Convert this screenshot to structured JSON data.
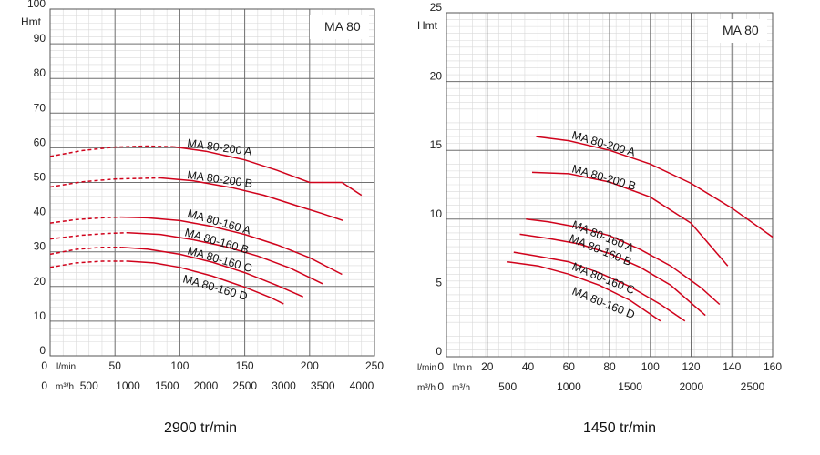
{
  "charts": [
    {
      "id": "left",
      "model_label": "MA 80",
      "y_title": "Hmt",
      "flow_label_primary": "l/min",
      "flow_label_secondary": "m³/h",
      "speed_label": "2900 tr/min"
    },
    {
      "id": "right",
      "model_label": "MA 80",
      "y_title": "Hmt",
      "flow_label_primary": "l/min",
      "flow_label_secondary": "m³/h",
      "speed_label": "1450 tr/min"
    }
  ],
  "chart_data": [
    {
      "type": "line",
      "title": "MA 80",
      "ylabel": "Hmt",
      "xlabel": "l/min",
      "secondary_xlabel": "m³/h",
      "speed": "2900 tr/min",
      "xlim": [
        0,
        250
      ],
      "ylim": [
        0,
        100
      ],
      "x_ticks": [
        0,
        50,
        100,
        150,
        200,
        250
      ],
      "x_tick_labels": [
        "0",
        "50",
        "100",
        "150",
        "200",
        "250"
      ],
      "secondary_x_ticks": [
        0,
        500,
        1000,
        1500,
        2000,
        2500,
        3000,
        3500,
        4000
      ],
      "secondary_x_tick_labels": [
        "0",
        "500",
        "1000",
        "1500",
        "2000",
        "2500",
        "3000",
        "3500",
        "4000"
      ],
      "y_ticks": [
        0,
        10,
        20,
        30,
        40,
        50,
        60,
        70,
        80,
        90,
        100
      ],
      "y_tick_labels": [
        "0",
        "10",
        "20",
        "30",
        "40",
        "50",
        "60",
        "70",
        "80",
        "90",
        "100"
      ],
      "grid": true,
      "series": [
        {
          "name": "MA 80-200 A",
          "dashed_x": [
            0,
            95
          ],
          "x": [
            0,
            25,
            50,
            75,
            95,
            120,
            150,
            175,
            200,
            225,
            240
          ],
          "y": [
            57.5,
            59.2,
            60.2,
            60.5,
            60.3,
            59.0,
            56.5,
            53.5,
            50.0,
            50.0,
            46.3
          ],
          "color": "#d0021b"
        },
        {
          "name": "MA 80-200 B",
          "dashed_x": [
            0,
            85
          ],
          "x": [
            0,
            25,
            50,
            85,
            110,
            140,
            165,
            190,
            210,
            226
          ],
          "y": [
            48.7,
            50.2,
            51.0,
            51.3,
            50.5,
            48.5,
            46.3,
            43.3,
            41.0,
            39.0
          ],
          "color": "#d0021b"
        },
        {
          "name": "MA 80-160 A",
          "dashed_x": [
            0,
            55
          ],
          "x": [
            0,
            20,
            40,
            55,
            75,
            100,
            125,
            150,
            175,
            200,
            225
          ],
          "y": [
            38.3,
            39.3,
            39.8,
            40.0,
            39.8,
            39.0,
            37.3,
            35.0,
            32.0,
            28.3,
            23.5
          ],
          "color": "#d0021b"
        },
        {
          "name": "MA 80-160 B",
          "dashed_x": [
            0,
            60
          ],
          "x": [
            0,
            25,
            45,
            60,
            85,
            110,
            135,
            160,
            185,
            210
          ],
          "y": [
            33.7,
            34.8,
            35.3,
            35.5,
            35.0,
            33.5,
            31.5,
            28.8,
            25.3,
            20.8
          ],
          "color": "#d0021b"
        },
        {
          "name": "MA 80-160 C",
          "dashed_x": [
            0,
            55
          ],
          "x": [
            0,
            20,
            40,
            55,
            75,
            100,
            125,
            150,
            175,
            195
          ],
          "y": [
            29.3,
            30.7,
            31.3,
            31.3,
            30.8,
            29.3,
            27.0,
            24.0,
            20.3,
            17.0
          ],
          "color": "#d0021b"
        },
        {
          "name": "MA 80-160 D",
          "dashed_x": [
            0,
            60
          ],
          "x": [
            0,
            20,
            40,
            60,
            80,
            100,
            125,
            150,
            170,
            180
          ],
          "y": [
            25.5,
            26.8,
            27.3,
            27.3,
            26.8,
            25.5,
            23.0,
            19.8,
            16.8,
            15.0
          ],
          "color": "#d0021b"
        }
      ]
    },
    {
      "type": "line",
      "title": "MA 80",
      "ylabel": "Hmt",
      "xlabel": "l/min",
      "secondary_xlabel": "m³/h",
      "speed": "1450 tr/min",
      "xlim": [
        0,
        160
      ],
      "ylim": [
        0,
        25
      ],
      "x_ticks": [
        0,
        20,
        40,
        60,
        80,
        100,
        120,
        140,
        160
      ],
      "x_tick_labels": [
        "0",
        "20",
        "40",
        "60",
        "80",
        "100",
        "120",
        "140",
        "160"
      ],
      "secondary_x_ticks": [
        0,
        500,
        1000,
        1500,
        2000,
        2500
      ],
      "secondary_x_tick_labels": [
        "0",
        "500",
        "1000",
        "1500",
        "2000",
        "2500"
      ],
      "y_ticks": [
        0,
        5,
        10,
        15,
        20,
        25
      ],
      "y_tick_labels": [
        "0",
        "5",
        "10",
        "15",
        "20",
        "25"
      ],
      "grid": true,
      "series": [
        {
          "name": "MA 80-200 A",
          "x": [
            44,
            60,
            80,
            100,
            120,
            140,
            160
          ],
          "y": [
            16.0,
            15.7,
            15.0,
            14.0,
            12.6,
            10.8,
            8.7
          ],
          "color": "#d0021b"
        },
        {
          "name": "MA 80-200 B",
          "x": [
            42,
            60,
            80,
            100,
            120,
            138
          ],
          "y": [
            13.4,
            13.3,
            12.7,
            11.6,
            9.7,
            6.6
          ],
          "color": "#d0021b"
        },
        {
          "name": "MA 80-160 A",
          "x": [
            39,
            50,
            65,
            80,
            95,
            110,
            125,
            134
          ],
          "y": [
            10.0,
            9.8,
            9.4,
            8.8,
            7.8,
            6.6,
            5.0,
            3.8
          ],
          "color": "#d0021b"
        },
        {
          "name": "MA 80-160 B",
          "x": [
            36,
            50,
            65,
            80,
            95,
            110,
            127
          ],
          "y": [
            8.9,
            8.6,
            8.2,
            7.5,
            6.5,
            5.2,
            3.0
          ],
          "color": "#d0021b"
        },
        {
          "name": "MA 80-160 C",
          "x": [
            33,
            45,
            60,
            75,
            90,
            105,
            117
          ],
          "y": [
            7.6,
            7.3,
            6.9,
            6.1,
            5.1,
            3.8,
            2.6
          ],
          "color": "#d0021b"
        },
        {
          "name": "MA 80-160 D",
          "x": [
            30,
            45,
            60,
            75,
            90,
            105
          ],
          "y": [
            6.9,
            6.6,
            6.0,
            5.2,
            4.1,
            2.6
          ],
          "color": "#d0021b"
        }
      ]
    }
  ]
}
